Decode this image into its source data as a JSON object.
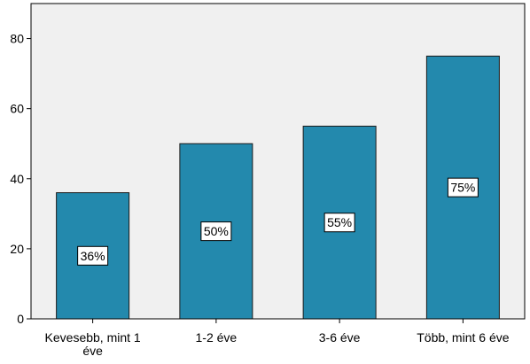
{
  "colors": {
    "plot_background": "#F0F0F0",
    "bar_fill": "#2389AD",
    "bar_stroke": "#1A1A1A",
    "axis": "#000000",
    "label_box_fill": "#FFFFFF",
    "label_box_stroke": "#000000"
  },
  "chart_data": {
    "type": "bar",
    "title": "",
    "xlabel": "",
    "ylabel": "",
    "categories": [
      [
        "Kevesebb, mint 1",
        "éve"
      ],
      [
        "1-2 éve"
      ],
      [
        "3-6 éve"
      ],
      [
        "Több, mint 6 éve"
      ]
    ],
    "values": [
      36,
      50,
      55,
      75
    ],
    "data_labels": [
      "36%",
      "50%",
      "55%",
      "75%"
    ],
    "ylim": [
      0,
      90
    ],
    "yticks": [
      0,
      20,
      40,
      60,
      80
    ],
    "grid": false,
    "legend": "none"
  }
}
